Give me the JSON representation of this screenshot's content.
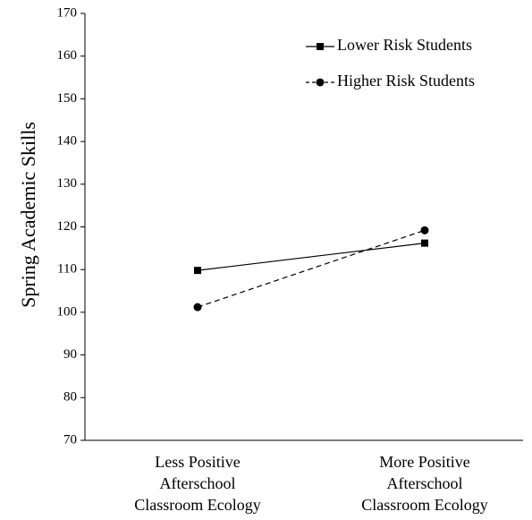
{
  "chart_data": {
    "type": "line",
    "ylabel": "Spring Academic Skills",
    "xlabel": "",
    "ylim": [
      70,
      170
    ],
    "yticks": [
      70,
      80,
      90,
      100,
      110,
      120,
      130,
      140,
      150,
      160,
      170
    ],
    "categories": [
      [
        "Less Positive",
        "Afterschool",
        "Classroom Ecology"
      ],
      [
        "More Positive",
        "Afterschool",
        "Classroom Ecology"
      ]
    ],
    "series": [
      {
        "name": "Lower Risk Students",
        "values": [
          109.8,
          116.2
        ],
        "marker": "square",
        "line": "solid"
      },
      {
        "name": "Higher Risk Students",
        "values": [
          101.2,
          119.2
        ],
        "marker": "circle",
        "line": "dashed"
      }
    ],
    "legend": "top-right",
    "grid": false
  }
}
